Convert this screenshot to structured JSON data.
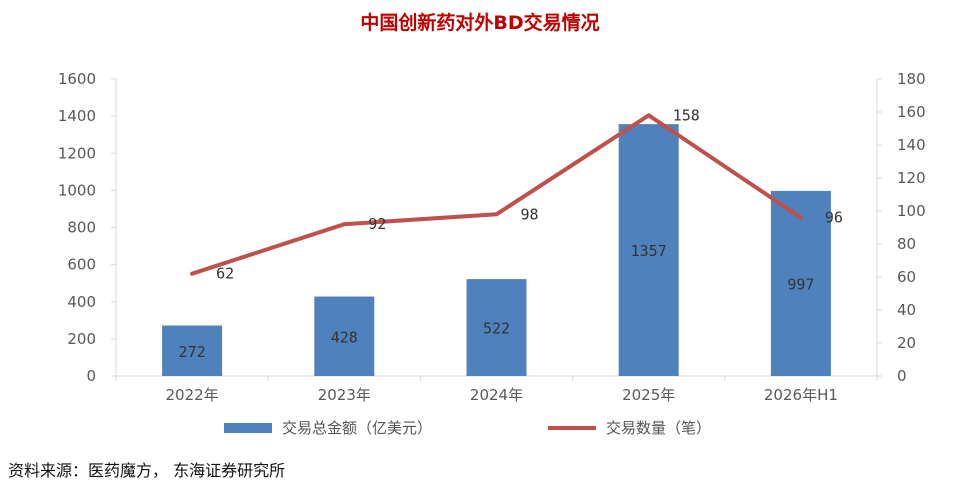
{
  "chart_data": {
    "type": "bar",
    "title": "中国创新药对外BD交易情况",
    "categories": [
      "2022年",
      "2023年",
      "2024年",
      "2025年",
      "2026年H1"
    ],
    "series": [
      {
        "name": "交易总金额（亿美元）",
        "type": "bar",
        "axis": "left",
        "values": [
          272,
          428,
          522,
          1357,
          997
        ],
        "labels": [
          "272",
          "428",
          "522",
          "1357",
          "997"
        ]
      },
      {
        "name": "交易数量（笔）",
        "type": "line",
        "axis": "right",
        "values": [
          62,
          92,
          98,
          158,
          96
        ],
        "labels": [
          "62",
          "92",
          "98",
          "158",
          "96"
        ]
      }
    ],
    "y_left": {
      "min": 0,
      "max": 1600,
      "ticks": [
        "0",
        "200",
        "400",
        "600",
        "800",
        "1000",
        "1200",
        "1400",
        "1600"
      ]
    },
    "y_right": {
      "min": 0,
      "max": 180,
      "ticks": [
        "0",
        "20",
        "40",
        "60",
        "80",
        "100",
        "120",
        "140",
        "160",
        "180"
      ]
    },
    "legend_position": "bottom",
    "grid": false,
    "colors": {
      "bar": "#4f81bd",
      "line": "#c0504d",
      "title": "#c00000"
    }
  },
  "source": "资料来源：医药魔方， 东海证券研究所"
}
